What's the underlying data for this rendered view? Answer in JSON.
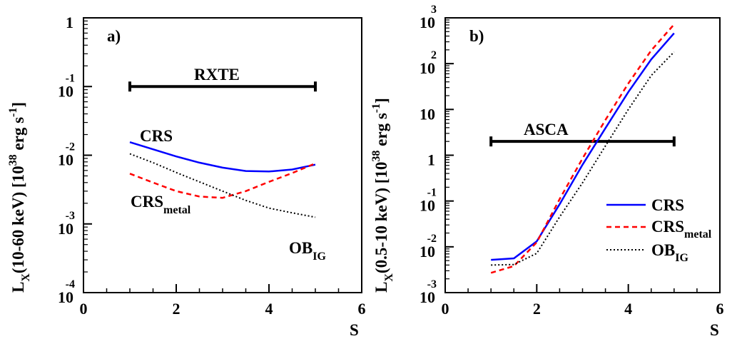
{
  "chart_data": [
    {
      "type": "line",
      "panel_label": "a)",
      "xlabel": "S",
      "ylabel": {
        "base": "L",
        "sub": "X",
        "rest": "(10-60 keV) [10",
        "sup": "38",
        "unit": " erg s",
        "unit_sup": "-1",
        "close": "]"
      },
      "xlim": [
        0,
        6
      ],
      "ylim": [
        0.0001,
        1
      ],
      "yscale": "log",
      "x_ticks": [
        "0",
        "2",
        "4",
        "6"
      ],
      "y_ticks": [
        {
          "value": 1,
          "base": "1",
          "exp": ""
        },
        {
          "value": 0.1,
          "base": "10",
          "exp": "-1"
        },
        {
          "value": 0.01,
          "base": "10",
          "exp": "-2"
        },
        {
          "value": 0.001,
          "base": "10",
          "exp": "-3"
        },
        {
          "value": 0.0001,
          "base": "10",
          "exp": "-4"
        }
      ],
      "band": {
        "label": "RXTE",
        "x_range": [
          1,
          5
        ],
        "y": 0.1
      },
      "series": [
        {
          "name": "CRS",
          "color": "#0000ff",
          "dash": "solid",
          "x": [
            1,
            1.5,
            2,
            2.5,
            3,
            3.5,
            4,
            4.5,
            5
          ],
          "y": [
            0.0155,
            0.0122,
            0.0096,
            0.0078,
            0.0066,
            0.0059,
            0.0058,
            0.0062,
            0.0073
          ]
        },
        {
          "name": "CRS",
          "sub": "metal",
          "color": "#ff0000",
          "dash": "dashed",
          "x": [
            1,
            1.5,
            2,
            2.5,
            3,
            3.5,
            4,
            4.5,
            5
          ],
          "y": [
            0.0054,
            0.004,
            0.003,
            0.0025,
            0.0024,
            0.003,
            0.0041,
            0.0055,
            0.0076
          ]
        },
        {
          "name": "OB",
          "sub": "IG",
          "color": "#000000",
          "dash": "dotted",
          "x": [
            1,
            1.5,
            2,
            2.5,
            3,
            3.5,
            4,
            4.5,
            5
          ],
          "y": [
            0.0105,
            0.0078,
            0.0056,
            0.0041,
            0.003,
            0.0022,
            0.0017,
            0.00145,
            0.00125
          ]
        }
      ],
      "annotations": [
        {
          "text": "CRS",
          "sub": ""
        },
        {
          "text": "CRS",
          "sub": "metal"
        },
        {
          "text": "OB",
          "sub": "IG"
        }
      ]
    },
    {
      "type": "line",
      "panel_label": "b)",
      "xlabel": "S",
      "ylabel": {
        "base": "L",
        "sub": "X",
        "rest": "(0.5-10 keV) [10",
        "sup": "38",
        "unit": " erg s",
        "unit_sup": "-1",
        "close": "]"
      },
      "xlim": [
        0,
        6
      ],
      "ylim": [
        0.001,
        1000
      ],
      "yscale": "log",
      "x_ticks": [
        "0",
        "2",
        "4",
        "6"
      ],
      "y_ticks": [
        {
          "value": 1000,
          "base": "10",
          "exp": "3"
        },
        {
          "value": 100,
          "base": "10",
          "exp": "2"
        },
        {
          "value": 10,
          "base": "10",
          "exp": ""
        },
        {
          "value": 1,
          "base": "1",
          "exp": ""
        },
        {
          "value": 0.1,
          "base": "10",
          "exp": "-1"
        },
        {
          "value": 0.01,
          "base": "10",
          "exp": "-2"
        },
        {
          "value": 0.001,
          "base": "10",
          "exp": "-3"
        }
      ],
      "band": {
        "label": "ASCA",
        "x_range": [
          1,
          5
        ],
        "y": 2
      },
      "legend": {
        "placement": "bottom-right"
      },
      "series": [
        {
          "name": "CRS",
          "color": "#0000ff",
          "dash": "solid",
          "x": [
            1,
            1.5,
            2,
            2.5,
            3,
            3.5,
            4,
            4.5,
            5
          ],
          "y": [
            0.0052,
            0.0056,
            0.0132,
            0.085,
            0.62,
            3.9,
            24,
            124,
            460
          ]
        },
        {
          "name": "CRS",
          "sub": "metal",
          "color": "#ff0000",
          "dash": "dashed",
          "x": [
            1,
            1.5,
            2,
            2.5,
            3,
            3.5,
            4,
            4.5,
            5
          ],
          "y": [
            0.0027,
            0.0038,
            0.0125,
            0.11,
            0.85,
            5.9,
            37,
            195,
            720
          ]
        },
        {
          "name": "OB",
          "sub": "IG",
          "color": "#000000",
          "dash": "dotted",
          "x": [
            1,
            1.5,
            2,
            2.5,
            3,
            3.5,
            4,
            4.5,
            5
          ],
          "y": [
            0.004,
            0.0041,
            0.0072,
            0.045,
            0.25,
            1.6,
            10,
            55,
            180
          ]
        }
      ]
    }
  ]
}
